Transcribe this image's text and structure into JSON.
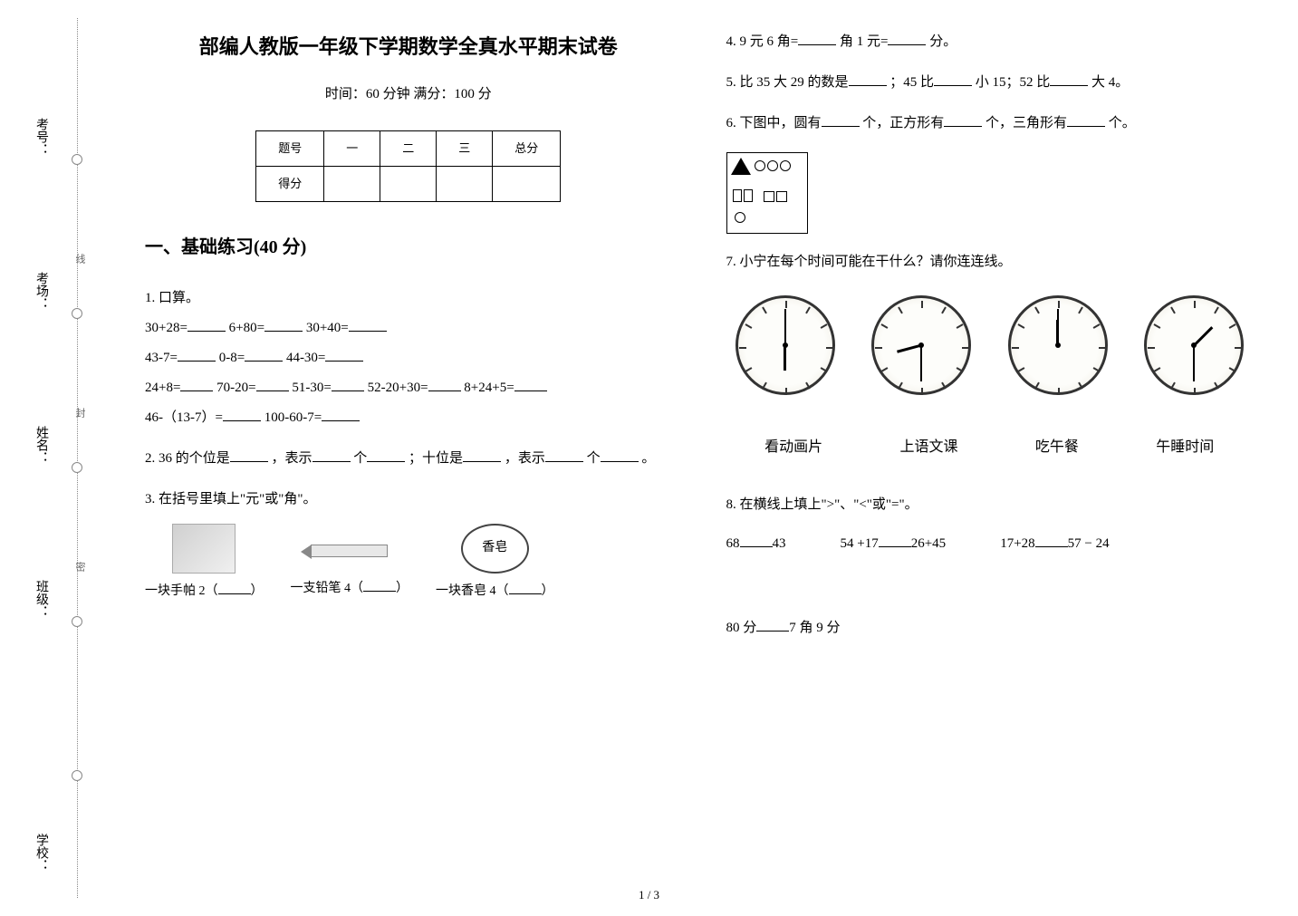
{
  "binding": {
    "labels": [
      "考号：",
      "考场：",
      "姓名：",
      "班级：",
      "学校："
    ],
    "seal_chars": [
      "线",
      "封",
      "密"
    ]
  },
  "header": {
    "title": "部编人教版一年级下学期数学全真水平期末试卷",
    "subtitle": "时间：60 分钟  满分：100 分"
  },
  "score_table": {
    "headers": [
      "题号",
      "一",
      "二",
      "三",
      "总分"
    ],
    "row_label": "得分"
  },
  "section1": {
    "title": "一、基础练习(40 分)"
  },
  "q1": {
    "label": "1.  口算。",
    "items": {
      "a1": "30+28=",
      "a2": "6+80=",
      "a3": "30+40=",
      "b1": "43-7=",
      "b2": "0-8=",
      "b3": "44-30=",
      "c1": "24+8=",
      "c2": "70-20=",
      "c3": "51-30=",
      "c4": "52-20+30=",
      "c5": "8+24+5=",
      "d1": "46-（13-7）=",
      "d2": "100-60-7="
    }
  },
  "q2": {
    "text_a": "2.  36 的个位是",
    "text_b": "，表示",
    "text_c": "个",
    "text_d": "；十位是",
    "text_e": "，表示",
    "text_f": "个",
    "text_g": "。"
  },
  "q3": {
    "label": "3.  在括号里填上\"元\"或\"角\"。",
    "items": {
      "handkerchief": "一块手帕 2（",
      "pencil": "一支铅笔 4（",
      "soap": "一块香皂 4（",
      "close": "）",
      "soap_text": "香皂"
    }
  },
  "q4": {
    "text_a": "4.  9 元 6 角=",
    "text_b": "角    1 元=",
    "text_c": "分。"
  },
  "q5": {
    "text_a": "5.  比 35 大 29 的数是",
    "text_b": "；45 比",
    "text_c": "小 15；52 比",
    "text_d": "大 4。"
  },
  "q6": {
    "text_a": "6.  下图中，圆有",
    "text_b": "个，正方形有",
    "text_c": "个，三角形有",
    "text_d": "个。"
  },
  "q7": {
    "label": "7.  小宁在每个时间可能在干什么？请你连连线。",
    "options": [
      "看动画片",
      "上语文课",
      "吃午餐",
      "午睡时间"
    ],
    "clocks": [
      {
        "hour_angle": 180,
        "min_angle": 0
      },
      {
        "hour_angle": 255,
        "min_angle": 180
      },
      {
        "hour_angle": 0,
        "min_angle": 0
      },
      {
        "hour_angle": 45,
        "min_angle": 180
      }
    ]
  },
  "q8": {
    "label": "8.  在横线上填上\">\"、\"<\"或\"=\"。",
    "line1_a": "68",
    "line1_b": "43",
    "line1_c": "54 +17",
    "line1_d": "26+45",
    "line2_a": "17+28",
    "line2_b": "57 − 24",
    "line2_c": "80 分",
    "line2_d": "7 角 9 分"
  },
  "page_num": "1 / 3",
  "colors": {
    "text": "#000000",
    "bg": "#ffffff",
    "dotted": "#888888"
  }
}
